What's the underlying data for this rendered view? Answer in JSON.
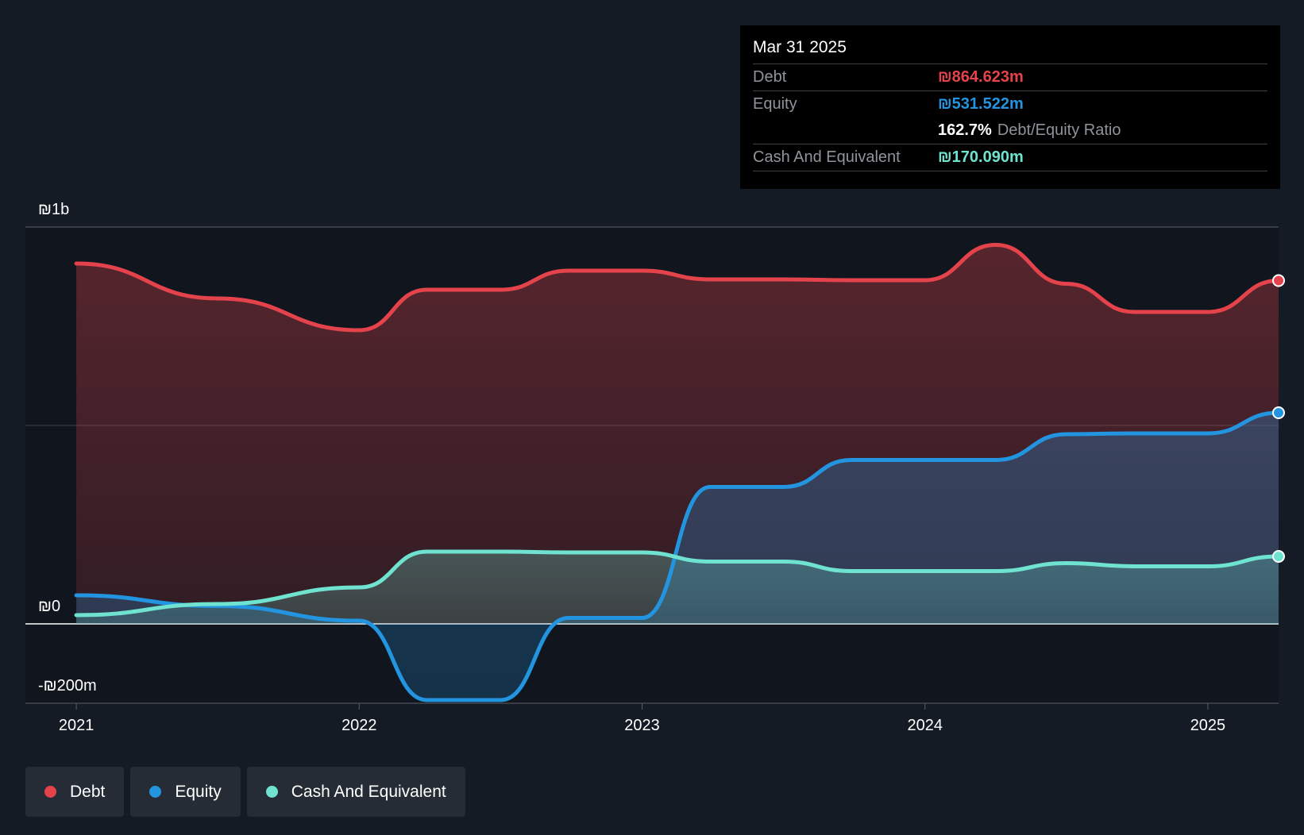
{
  "tooltip": {
    "date": "Mar 31 2025",
    "rows": [
      {
        "name": "Debt",
        "value": "₪864.623m"
      },
      {
        "name": "Equity",
        "value": "₪531.522m"
      },
      {
        "ratio_value": "162.7%",
        "ratio_label": "Debt/Equity Ratio"
      },
      {
        "name": "Cash And Equivalent",
        "value": "₪170.090m"
      }
    ]
  },
  "legend": [
    {
      "label": "Debt",
      "color": "#e5434b"
    },
    {
      "label": "Equity",
      "color": "#2394df"
    },
    {
      "label": "Cash And Equivalent",
      "color": "#6fe3cf"
    }
  ],
  "chart_data": {
    "type": "area",
    "y_tick_labels": [
      "₪1b",
      "₪0",
      "-₪200m"
    ],
    "x_tick_labels": [
      "2021",
      "2022",
      "2023",
      "2024",
      "2025"
    ],
    "ylim": [
      -200,
      1000
    ],
    "xlim": [
      2020.82,
      2025.25
    ],
    "grid": true,
    "series": [
      {
        "name": "Debt",
        "color": "#e5434b",
        "points": [
          [
            2021.0,
            908
          ],
          [
            2021.5,
            820
          ],
          [
            2022.0,
            740
          ],
          [
            2022.24,
            842
          ],
          [
            2022.5,
            842
          ],
          [
            2022.74,
            890
          ],
          [
            2023.0,
            890
          ],
          [
            2023.24,
            868
          ],
          [
            2023.5,
            868
          ],
          [
            2023.74,
            866
          ],
          [
            2024.0,
            866
          ],
          [
            2024.25,
            955
          ],
          [
            2024.5,
            857
          ],
          [
            2024.74,
            786
          ],
          [
            2025.0,
            786
          ],
          [
            2025.25,
            865
          ]
        ]
      },
      {
        "name": "Equity",
        "color": "#2394df",
        "points": [
          [
            2021.0,
            72
          ],
          [
            2021.5,
            45
          ],
          [
            2022.0,
            8
          ],
          [
            2022.24,
            -192
          ],
          [
            2022.5,
            -192
          ],
          [
            2022.74,
            15
          ],
          [
            2023.0,
            15
          ],
          [
            2023.24,
            345
          ],
          [
            2023.5,
            345
          ],
          [
            2023.74,
            413
          ],
          [
            2024.0,
            413
          ],
          [
            2024.25,
            413
          ],
          [
            2024.5,
            478
          ],
          [
            2024.74,
            480
          ],
          [
            2025.0,
            480
          ],
          [
            2025.25,
            532
          ]
        ]
      },
      {
        "name": "Cash And Equivalent",
        "color": "#6fe3cf",
        "points": [
          [
            2021.0,
            22
          ],
          [
            2021.5,
            50
          ],
          [
            2022.0,
            92
          ],
          [
            2022.24,
            182
          ],
          [
            2022.5,
            182
          ],
          [
            2022.74,
            180
          ],
          [
            2023.0,
            180
          ],
          [
            2023.24,
            157
          ],
          [
            2023.5,
            157
          ],
          [
            2023.74,
            133
          ],
          [
            2024.0,
            133
          ],
          [
            2024.25,
            133
          ],
          [
            2024.5,
            153
          ],
          [
            2024.74,
            145
          ],
          [
            2025.0,
            145
          ],
          [
            2025.25,
            170
          ]
        ]
      }
    ]
  }
}
